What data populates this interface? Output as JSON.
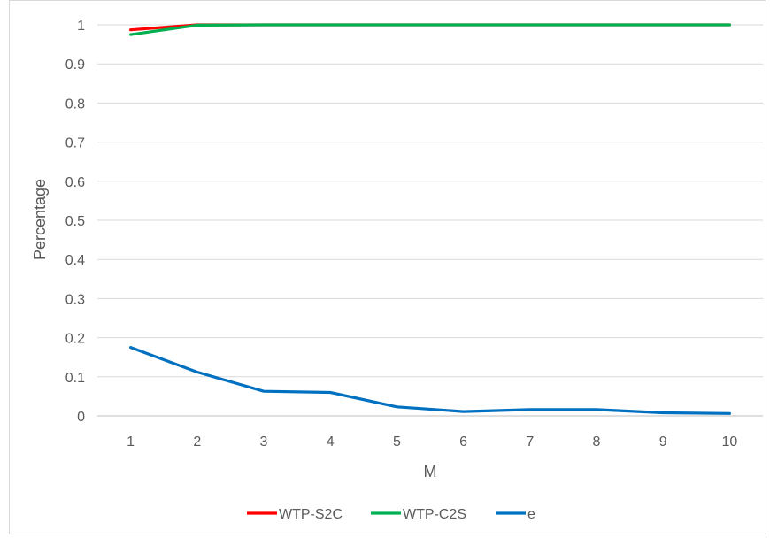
{
  "chart_data": {
    "type": "line",
    "title": "",
    "xlabel": "M",
    "ylabel": "Percentage",
    "x": [
      "1",
      "2",
      "3",
      "4",
      "5",
      "6",
      "7",
      "8",
      "9",
      "10"
    ],
    "y_ticks": [
      "0",
      "0.1",
      "0.2",
      "0.3",
      "0.4",
      "0.5",
      "0.6",
      "0.7",
      "0.8",
      "0.9",
      "1"
    ],
    "ylim": [
      0,
      1
    ],
    "grid": "horizontal",
    "legend_position": "bottom",
    "series": [
      {
        "name": "WTP-S2C",
        "color": "#ff0000",
        "values": [
          0.987,
          1.0,
          1.0,
          1.0,
          1.0,
          1.0,
          1.0,
          1.0,
          1.0,
          1.0
        ]
      },
      {
        "name": "WTP-C2S",
        "color": "#00b050",
        "values": [
          0.975,
          0.999,
          1.0,
          1.0,
          1.0,
          1.0,
          1.0,
          1.0,
          1.0,
          1.0
        ]
      },
      {
        "name": "e",
        "color": "#0070c0",
        "values": [
          0.175,
          0.112,
          0.063,
          0.06,
          0.023,
          0.011,
          0.016,
          0.016,
          0.008,
          0.006
        ]
      }
    ]
  }
}
